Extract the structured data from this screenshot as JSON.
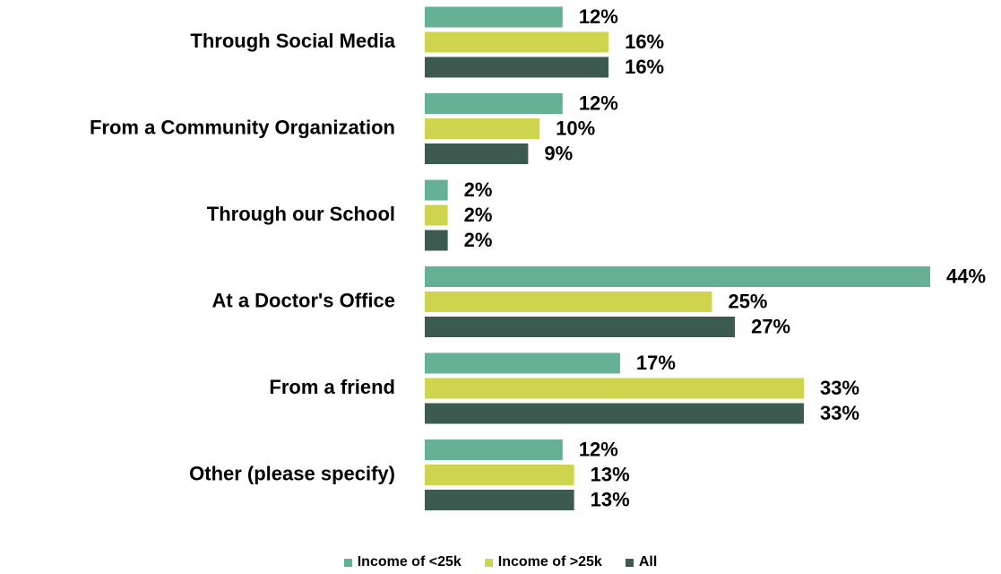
{
  "chart_data": {
    "type": "bar",
    "orientation": "horizontal",
    "categories": [
      "Through Social Media",
      "From a Community Organization",
      "Through our School",
      "At a Doctor's Office",
      "From a friend",
      "Other (please specify)"
    ],
    "series": [
      {
        "name": "Income of <25k",
        "color": "#66b096",
        "values": [
          12,
          12,
          2,
          44,
          17,
          12
        ],
        "value_labels": [
          "12%",
          "12%",
          "2%",
          "44%",
          "17%",
          "12%"
        ]
      },
      {
        "name": "Income of >25k",
        "color": "#cfd44f",
        "values": [
          16,
          10,
          2,
          25,
          33,
          13
        ],
        "value_labels": [
          "16%",
          "10%",
          "2%",
          "25%",
          "33%",
          "13%"
        ]
      },
      {
        "name": "All",
        "color": "#3d5a50",
        "values": [
          16,
          9,
          2,
          27,
          33,
          13
        ],
        "value_labels": [
          "16%",
          "9%",
          "2%",
          "27%",
          "33%",
          "13%"
        ]
      }
    ],
    "legend": "bottom"
  }
}
